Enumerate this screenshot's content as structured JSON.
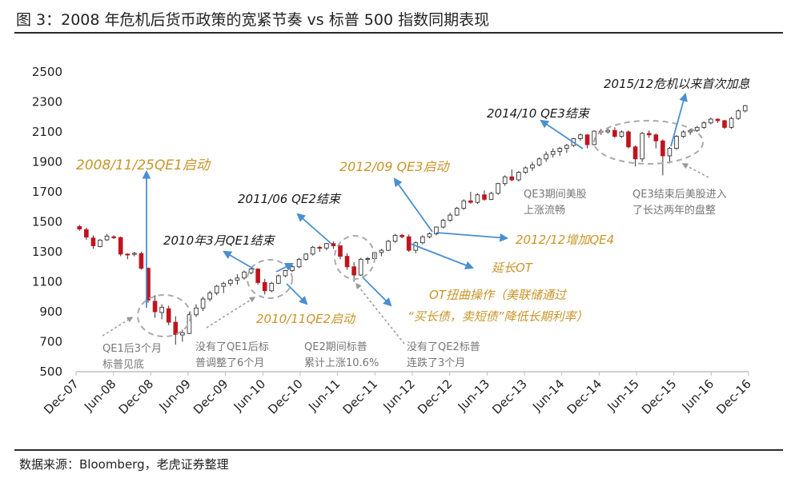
{
  "title": "图 3：2008 年危机后货币政策的宽紧节奏 vs 标普 500 指数同期表现",
  "source": "数据来源：Bloomberg，老虎证券整理",
  "colors": {
    "up": "#ffffff",
    "down": "#c0141f",
    "callout_gold": "#c9952a",
    "callout_black": "#1a1a1a",
    "arrow": "#4a8fd0",
    "note_gray": "#777777"
  },
  "chart_data": {
    "type": "candlestick",
    "title": "",
    "ylim": [
      500,
      2500
    ],
    "yticks": [
      "2500",
      "2300",
      "2100",
      "1900",
      "1700",
      "1500",
      "1300",
      "1100",
      "900",
      "700",
      "500"
    ],
    "xticks": [
      "Dec-07",
      "Jun-08",
      "Dec-08",
      "Jun-09",
      "Dec-09",
      "Jun-10",
      "Dec-10",
      "Jun-11",
      "Dec-11",
      "Jun-12",
      "Dec-12",
      "Jun-13",
      "Dec-13",
      "Jun-14",
      "Dec-14",
      "Jun-15",
      "Dec-15",
      "Jun-16",
      "Dec-16"
    ],
    "candles": [
      [
        1468,
        1480,
        1440,
        1452
      ],
      [
        1448,
        1460,
        1380,
        1398
      ],
      [
        1392,
        1410,
        1320,
        1340
      ],
      [
        1335,
        1385,
        1330,
        1378
      ],
      [
        1380,
        1420,
        1372,
        1405
      ],
      [
        1400,
        1410,
        1385,
        1395
      ],
      [
        1395,
        1402,
        1270,
        1285
      ],
      [
        1285,
        1290,
        1250,
        1283
      ],
      [
        1283,
        1300,
        1270,
        1290
      ],
      [
        1288,
        1300,
        1180,
        1190
      ],
      [
        1190,
        1195,
        960,
        978
      ],
      [
        970,
        1010,
        860,
        900
      ],
      [
        895,
        950,
        850,
        930
      ],
      [
        920,
        940,
        810,
        830
      ],
      [
        830,
        870,
        680,
        748
      ],
      [
        745,
        780,
        700,
        760
      ],
      [
        755,
        900,
        750,
        880
      ],
      [
        880,
        950,
        865,
        925
      ],
      [
        925,
        1000,
        905,
        985
      ],
      [
        985,
        1040,
        970,
        1025
      ],
      [
        1025,
        1080,
        1010,
        1070
      ],
      [
        1070,
        1100,
        1025,
        1088
      ],
      [
        1088,
        1120,
        1070,
        1110
      ],
      [
        1110,
        1150,
        1080,
        1125
      ],
      [
        1125,
        1175,
        1115,
        1165
      ],
      [
        1160,
        1200,
        1150,
        1185
      ],
      [
        1185,
        1190,
        1080,
        1095
      ],
      [
        1095,
        1120,
        1015,
        1040
      ],
      [
        1040,
        1100,
        1030,
        1090
      ],
      [
        1090,
        1150,
        1085,
        1140
      ],
      [
        1140,
        1180,
        1130,
        1175
      ],
      [
        1175,
        1210,
        1165,
        1200
      ],
      [
        1200,
        1260,
        1190,
        1250
      ],
      [
        1250,
        1290,
        1240,
        1285
      ],
      [
        1285,
        1340,
        1275,
        1330
      ],
      [
        1330,
        1340,
        1300,
        1325
      ],
      [
        1325,
        1360,
        1310,
        1355
      ],
      [
        1355,
        1370,
        1320,
        1340
      ],
      [
        1340,
        1345,
        1250,
        1270
      ],
      [
        1270,
        1290,
        1180,
        1200
      ],
      [
        1200,
        1230,
        1100,
        1145
      ],
      [
        1145,
        1260,
        1140,
        1250
      ],
      [
        1250,
        1265,
        1220,
        1255
      ],
      [
        1255,
        1300,
        1250,
        1295
      ],
      [
        1295,
        1320,
        1270,
        1310
      ],
      [
        1310,
        1380,
        1305,
        1370
      ],
      [
        1370,
        1420,
        1360,
        1410
      ],
      [
        1410,
        1420,
        1390,
        1400
      ],
      [
        1400,
        1415,
        1300,
        1310
      ],
      [
        1310,
        1370,
        1290,
        1360
      ],
      [
        1360,
        1410,
        1350,
        1400
      ],
      [
        1400,
        1430,
        1390,
        1420
      ],
      [
        1420,
        1470,
        1410,
        1465
      ],
      [
        1465,
        1520,
        1455,
        1510
      ],
      [
        1510,
        1560,
        1500,
        1545
      ],
      [
        1545,
        1600,
        1540,
        1590
      ],
      [
        1590,
        1650,
        1580,
        1640
      ],
      [
        1640,
        1700,
        1620,
        1630
      ],
      [
        1630,
        1690,
        1620,
        1680
      ],
      [
        1680,
        1710,
        1640,
        1650
      ],
      [
        1650,
        1700,
        1645,
        1690
      ],
      [
        1690,
        1760,
        1680,
        1755
      ],
      [
        1755,
        1810,
        1740,
        1800
      ],
      [
        1800,
        1850,
        1770,
        1780
      ],
      [
        1780,
        1840,
        1770,
        1830
      ],
      [
        1830,
        1870,
        1820,
        1860
      ],
      [
        1860,
        1900,
        1840,
        1880
      ],
      [
        1880,
        1930,
        1870,
        1920
      ],
      [
        1920,
        1970,
        1900,
        1950
      ],
      [
        1950,
        1990,
        1930,
        1970
      ],
      [
        1970,
        2000,
        1940,
        1990
      ],
      [
        1990,
        2020,
        1960,
        2010
      ],
      [
        2010,
        2060,
        2000,
        2055
      ],
      [
        2055,
        2090,
        2040,
        2080
      ],
      [
        2080,
        2085,
        1990,
        2015
      ],
      [
        2015,
        2110,
        2010,
        2105
      ],
      [
        2105,
        2120,
        2080,
        2100
      ],
      [
        2100,
        2125,
        2090,
        2110
      ],
      [
        2110,
        2130,
        2060,
        2070
      ],
      [
        2070,
        2110,
        2060,
        2100
      ],
      [
        2100,
        2110,
        1990,
        2000
      ],
      [
        2000,
        2010,
        1870,
        1920
      ],
      [
        1920,
        2100,
        1900,
        2090
      ],
      [
        2090,
        2110,
        2060,
        2080
      ],
      [
        2080,
        2090,
        1990,
        2040
      ],
      [
        2040,
        2050,
        1810,
        1940
      ],
      [
        1940,
        2000,
        1890,
        1990
      ],
      [
        1990,
        2080,
        1980,
        2070
      ],
      [
        2070,
        2110,
        2060,
        2100
      ],
      [
        2100,
        2120,
        2080,
        2110
      ],
      [
        2110,
        2140,
        2100,
        2130
      ],
      [
        2130,
        2170,
        2120,
        2160
      ],
      [
        2160,
        2195,
        2150,
        2185
      ],
      [
        2185,
        2190,
        2160,
        2175
      ],
      [
        2175,
        2180,
        2120,
        2130
      ],
      [
        2130,
        2200,
        2120,
        2190
      ],
      [
        2190,
        2250,
        2180,
        2240
      ],
      [
        2240,
        2280,
        2230,
        2275
      ]
    ],
    "annotations": {
      "qe1_start": "2008/11/25QE1启动",
      "qe1_end": "2010年3月QE1结束",
      "qe2_start": "2010/11QE2启动",
      "qe2_end": "2011/06 QE2结束",
      "qe3_start": "2012/09 QE3启动",
      "qe4_add": "2012/12增加QE4",
      "ot_extend": "延长OT",
      "ot_op_line1": "OT扭曲操作（美联储通过",
      "ot_op_line2": "“买长债，卖短债”降低长期利率）",
      "qe3_end": "2014/10 QE3结束",
      "hike": "2015/12危机以来首次加息"
    },
    "notes": {
      "n1_l1": "QE1后3个月",
      "n1_l2": "标普见底",
      "n2_l1": "没有了QE1后标",
      "n2_l2": "普调整了6个月",
      "n3_l1": "QE2期间标普",
      "n3_l2": "累计上涨10.6%",
      "n4_l1": "没有了QE2标普",
      "n4_l2": "连跌了3个月",
      "n5_l1": "QE3期间美股",
      "n5_l2": "上涨流畅",
      "n6_l1": "QE3结束后美股进入",
      "n6_l2": "了长达两年的盘整"
    }
  }
}
